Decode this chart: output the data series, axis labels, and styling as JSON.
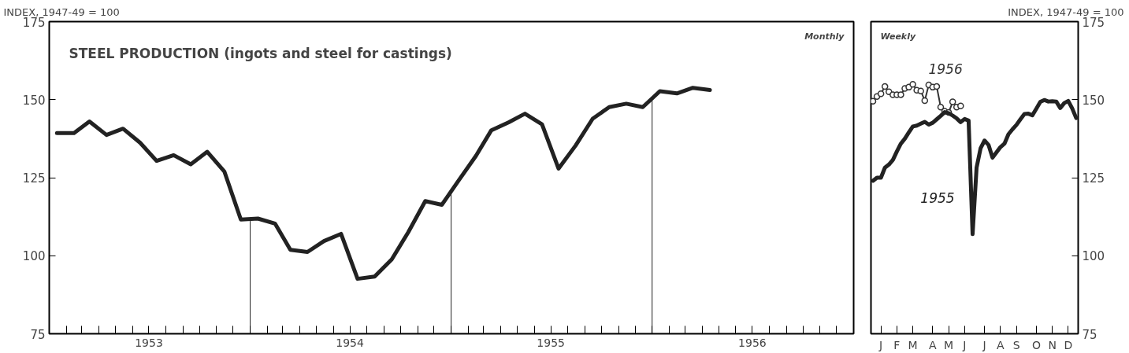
{
  "chart_data": [
    {
      "type": "line",
      "title": "STEEL PRODUCTION (ingots and steel for castings)",
      "ylabel": "INDEX, 1947-49 = 100",
      "annotations": [
        "Monthly"
      ],
      "x": [
        "1953-01-15",
        "1953-02-15",
        "1953-03-15",
        "1953-04-15",
        "1953-05-15",
        "1953-06-15",
        "1953-07-15",
        "1953-08-15",
        "1953-09-15",
        "1953-10-15",
        "1953-11-15",
        "1953-12-15",
        "1954-01-15",
        "1954-02-15",
        "1954-03-15",
        "1954-04-15",
        "1954-05-15",
        "1954-06-15",
        "1954-07-15",
        "1954-08-15",
        "1954-09-15",
        "1954-10-15",
        "1954-11-15",
        "1954-12-15",
        "1955-01-15",
        "1955-02-15",
        "1955-03-15",
        "1955-04-15",
        "1955-05-15",
        "1955-06-15",
        "1955-07-15",
        "1955-08-15",
        "1955-09-15",
        "1955-10-15",
        "1955-11-15",
        "1955-12-15",
        "1956-01-15",
        "1956-02-15",
        "1956-03-15",
        "1956-04-15"
      ],
      "series": [
        {
          "color": "#222222",
          "values": [
            139.3,
            139.3,
            143,
            138.7,
            140.7,
            136.2,
            130.4,
            132.2,
            129.3,
            133.3,
            127,
            111.6,
            111.9,
            110.3,
            101.9,
            101.2,
            104.7,
            107,
            92.6,
            93.3,
            98.8,
            107.5,
            117.5,
            116.3,
            124.2,
            132,
            140.2,
            142.7,
            145.5,
            142.1,
            127.9,
            135.3,
            143.9,
            147.6,
            148.7,
            147.6,
            152.7,
            152,
            153.8,
            153.1
          ]
        }
      ],
      "ref_lines": [
        {
          "axis": "x",
          "value": "1954-01-01",
          "label": null
        },
        {
          "axis": "x",
          "value": "1955-01-01",
          "label": null
        },
        {
          "axis": "x",
          "value": "1956-01-01",
          "label": null
        }
      ],
      "xlim": [
        "1953-01-01",
        "1957-01-01"
      ],
      "xticks": [
        {
          "value": "1953-02-01",
          "label": null
        },
        {
          "value": "1953-03-01",
          "label": null
        },
        {
          "value": "1953-04-01",
          "label": null
        },
        {
          "value": "1953-05-01",
          "label": null
        },
        {
          "value": "1953-06-01",
          "label": null
        },
        {
          "value": "1953-07-01",
          "label": "1953"
        },
        {
          "value": "1953-08-01",
          "label": null
        },
        {
          "value": "1953-09-01",
          "label": null
        },
        {
          "value": "1953-10-01",
          "label": null
        },
        {
          "value": "1953-11-01",
          "label": null
        },
        {
          "value": "1953-12-01",
          "label": null
        },
        {
          "value": "1954-01-01",
          "label": null
        },
        {
          "value": "1954-02-01",
          "label": null
        },
        {
          "value": "1954-03-01",
          "label": null
        },
        {
          "value": "1954-04-01",
          "label": null
        },
        {
          "value": "1954-05-01",
          "label": null
        },
        {
          "value": "1954-06-01",
          "label": null
        },
        {
          "value": "1954-07-01",
          "label": "1954"
        },
        {
          "value": "1954-08-01",
          "label": null
        },
        {
          "value": "1954-09-01",
          "label": null
        },
        {
          "value": "1954-10-01",
          "label": null
        },
        {
          "value": "1954-11-01",
          "label": null
        },
        {
          "value": "1954-12-01",
          "label": null
        },
        {
          "value": "1955-01-01",
          "label": null
        },
        {
          "value": "1955-02-01",
          "label": null
        },
        {
          "value": "1955-03-01",
          "label": null
        },
        {
          "value": "1955-04-01",
          "label": null
        },
        {
          "value": "1955-05-01",
          "label": null
        },
        {
          "value": "1955-06-01",
          "label": null
        },
        {
          "value": "1955-07-01",
          "label": "1955"
        },
        {
          "value": "1955-08-01",
          "label": null
        },
        {
          "value": "1955-09-01",
          "label": null
        },
        {
          "value": "1955-10-01",
          "label": null
        },
        {
          "value": "1955-11-01",
          "label": null
        },
        {
          "value": "1955-12-01",
          "label": null
        },
        {
          "value": "1956-01-01",
          "label": null
        },
        {
          "value": "1956-02-01",
          "label": null
        },
        {
          "value": "1956-03-01",
          "label": null
        },
        {
          "value": "1956-04-01",
          "label": null
        },
        {
          "value": "1956-05-01",
          "label": null
        },
        {
          "value": "1956-06-01",
          "label": null
        },
        {
          "value": "1956-07-01",
          "label": "1956"
        },
        {
          "value": "1956-08-01",
          "label": null
        },
        {
          "value": "1956-09-01",
          "label": null
        },
        {
          "value": "1956-10-01",
          "label": null
        },
        {
          "value": "1956-11-01",
          "label": null
        },
        {
          "value": "1956-12-01",
          "label": null
        }
      ],
      "ylim": [
        75,
        175
      ],
      "yticks": [
        75,
        100,
        125,
        150,
        175
      ],
      "grid": false,
      "line_style": "solid",
      "marker": "none"
    },
    {
      "type": "line",
      "ylabel": "INDEX, 1947-49 = 100",
      "annotations": [
        "Weekly"
      ],
      "categories": [
        null,
        null,
        "J",
        null,
        null,
        null,
        "F",
        null,
        null,
        null,
        "M",
        null,
        null,
        null,
        null,
        "A",
        null,
        null,
        null,
        "M",
        null,
        null,
        null,
        "J",
        null,
        null,
        null,
        null,
        "J",
        null,
        null,
        null,
        "A",
        null,
        null,
        null,
        "S",
        null,
        null,
        null,
        null,
        "O",
        null,
        null,
        null,
        "N",
        null,
        null,
        null,
        "D",
        null,
        null
      ],
      "series": [
        {
          "name": "1956",
          "color": "#333333",
          "marker": "circle",
          "values": [
            149.5,
            151,
            151.9,
            154.2,
            152.5,
            151.6,
            151.6,
            151.6,
            153.6,
            154,
            154.9,
            153,
            152.8,
            149.7,
            154.7,
            154,
            154.2,
            147.6,
            146.3,
            145.9,
            149.3,
            147.6,
            148,
            null,
            null,
            null,
            null,
            null,
            null,
            null,
            null,
            null,
            null,
            null,
            null,
            null,
            null,
            null,
            null,
            null,
            null,
            null,
            null,
            null,
            null,
            null,
            null,
            null,
            null,
            null,
            null,
            null
          ]
        },
        {
          "name": "1955",
          "color": "#222222",
          "marker": "none",
          "values": [
            124,
            125,
            125,
            128.2,
            129.2,
            130.7,
            133.4,
            135.9,
            137.5,
            139.5,
            141.4,
            141.7,
            142.3,
            142.9,
            142,
            142.6,
            143.7,
            144.8,
            146,
            145.7,
            144.9,
            144,
            142.8,
            143.8,
            143.3,
            106.9,
            128.2,
            134.4,
            136.9,
            135.5,
            131.4,
            133.1,
            134.8,
            135.9,
            138.9,
            140.5,
            141.9,
            143.7,
            145.4,
            145.5,
            145,
            147.1,
            149.3,
            149.9,
            149.4,
            149.5,
            149.4,
            147.3,
            148.9,
            149.6,
            147.2,
            144.1
          ]
        }
      ],
      "ylim": [
        75,
        175
      ],
      "yticks": [
        75,
        100,
        125,
        150,
        175
      ],
      "grid": false,
      "line_style": "solid"
    }
  ]
}
